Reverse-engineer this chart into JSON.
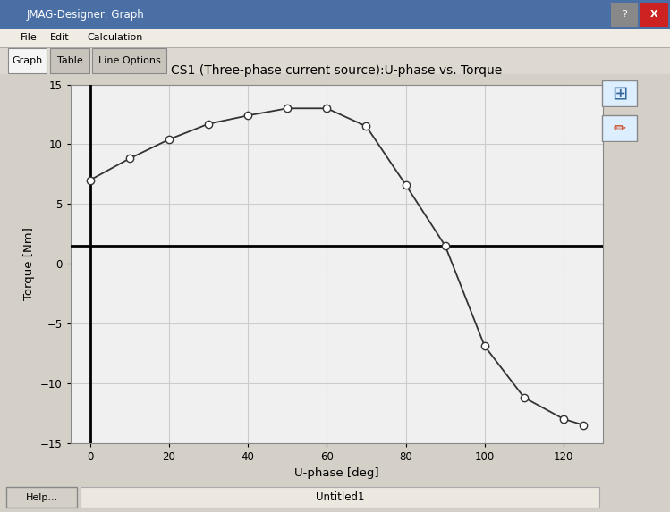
{
  "title": "CS1 (Three-phase current source):U-phase vs. Torque",
  "xlabel": "U-phase [deg]",
  "ylabel": "Torque [Nm]",
  "x_data": [
    0,
    10,
    20,
    30,
    40,
    50,
    60,
    70,
    80,
    90,
    100,
    110,
    120,
    125
  ],
  "y_data": [
    7.0,
    8.8,
    10.4,
    11.7,
    12.4,
    13.0,
    13.0,
    11.5,
    6.6,
    1.5,
    -6.9,
    -11.2,
    -13.0,
    -13.5
  ],
  "xlim": [
    -5,
    130
  ],
  "ylim": [
    -15,
    15
  ],
  "xticks": [
    0,
    20,
    40,
    60,
    80,
    100,
    120
  ],
  "yticks": [
    -15,
    -10,
    -5,
    0,
    5,
    10,
    15
  ],
  "line_color": "#333333",
  "marker_style": "o",
  "marker_facecolor": "white",
  "marker_edgecolor": "#333333",
  "marker_size": 6,
  "hline_y": 1.5,
  "vline_x": 0,
  "grid_color": "#cccccc",
  "plot_bg_color": "#f0f0f0",
  "window_title": "JMAG-Designer: Graph",
  "status_text": "Untitled1",
  "tab_labels": [
    "Graph",
    "Table",
    "Line Options"
  ],
  "menu_items": [
    "File",
    "Edit",
    "Calculation"
  ]
}
